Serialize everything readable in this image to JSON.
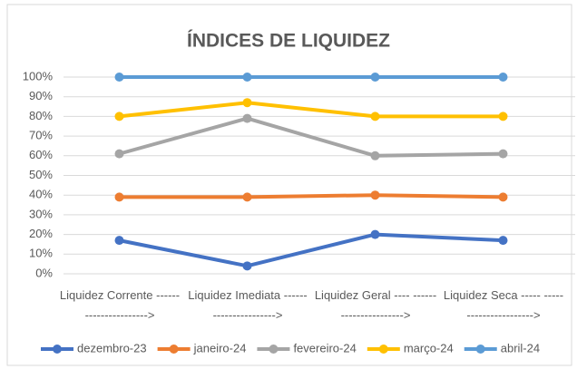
{
  "chart_data": {
    "type": "line",
    "title": "ÍNDICES DE LIQUIDEZ",
    "categories": [
      "Liquidez Corrente ---------------------->",
      "Liquidez Imediata ---------------------->",
      "Liquidez Geral ---- ---------------------->",
      "Liquidez Seca ----- ---------------------->"
    ],
    "series": [
      {
        "name": "dezembro-23",
        "color": "#4472c4",
        "values": [
          17,
          4,
          20,
          17
        ]
      },
      {
        "name": "janeiro-24",
        "color": "#ed7d31",
        "values": [
          39,
          39,
          40,
          39
        ]
      },
      {
        "name": "fevereiro-24",
        "color": "#a5a5a5",
        "values": [
          61,
          79,
          60,
          61
        ]
      },
      {
        "name": "março-24",
        "color": "#ffc000",
        "values": [
          80,
          87,
          80,
          80
        ]
      },
      {
        "name": "abril-24",
        "color": "#5b9bd5",
        "values": [
          100,
          100,
          100,
          100
        ]
      }
    ],
    "ylim": [
      0,
      100
    ],
    "yticks": [
      {
        "value": 0,
        "label": "0%"
      },
      {
        "value": 10,
        "label": "10%"
      },
      {
        "value": 20,
        "label": "20%"
      },
      {
        "value": 30,
        "label": "30%"
      },
      {
        "value": 40,
        "label": "40%"
      },
      {
        "value": 50,
        "label": "50%"
      },
      {
        "value": 60,
        "label": "60%"
      },
      {
        "value": 70,
        "label": "70%"
      },
      {
        "value": 80,
        "label": "80%"
      },
      {
        "value": 90,
        "label": "90%"
      },
      {
        "value": 100,
        "label": "100%"
      }
    ],
    "grid": true,
    "legend": "bottom"
  }
}
